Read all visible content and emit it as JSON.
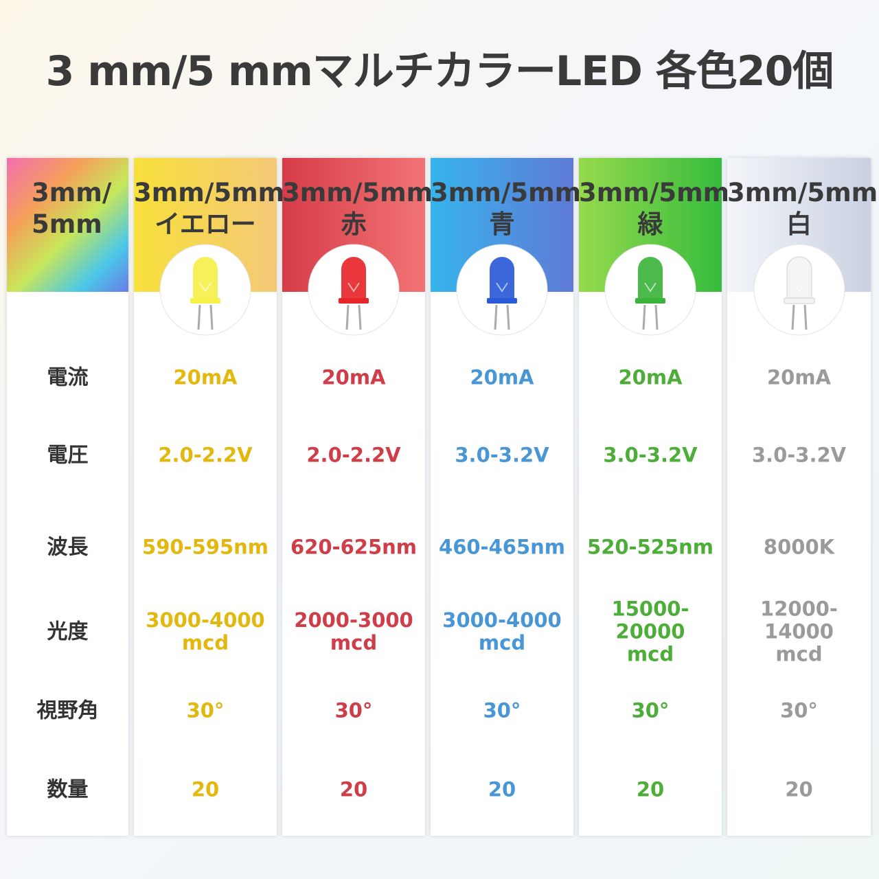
{
  "title": "3 mm/5 mmマルチカラーLED 各色20個",
  "table": {
    "corner": [
      "3mm/",
      "5mm"
    ],
    "columns": [
      [
        "3mm/5mm",
        "イエロー"
      ],
      [
        "3mm/5mm",
        "赤"
      ],
      [
        "3mm/5mm",
        "青"
      ],
      [
        "3mm/5mm",
        "緑"
      ],
      [
        "3mm/5mm",
        "白"
      ]
    ],
    "row_labels": [
      "電流",
      "電圧",
      "波長",
      "光度",
      "視野角",
      "数量"
    ],
    "rows": [
      [
        "20mA",
        "20mA",
        "20mA",
        "20mA",
        "20mA"
      ],
      [
        "2.0-2.2V",
        "2.0-2.2V",
        "3.0-3.2V",
        "3.0-3.2V",
        "3.0-3.2V"
      ],
      [
        "590-595nm",
        "620-625nm",
        "460-465nm",
        "520-525nm",
        "8000K"
      ],
      [
        "3000-4000\nmcd",
        "2000-3000\nmcd",
        "3000-4000\nmcd",
        "15000-20000\nmcd",
        "12000-14000\nmcd"
      ],
      [
        "30°",
        "30°",
        "30°",
        "30°",
        "30°"
      ],
      [
        "20",
        "20",
        "20",
        "20",
        "20"
      ]
    ]
  }
}
